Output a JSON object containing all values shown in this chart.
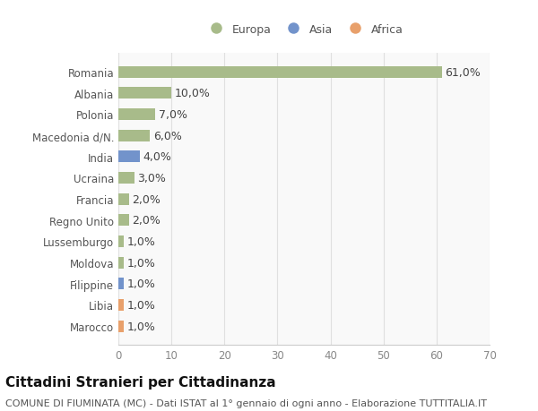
{
  "countries": [
    "Romania",
    "Albania",
    "Polonia",
    "Macedonia d/N.",
    "India",
    "Ucraina",
    "Francia",
    "Regno Unito",
    "Lussemburgo",
    "Moldova",
    "Filippine",
    "Libia",
    "Marocco"
  ],
  "values": [
    61.0,
    10.0,
    7.0,
    6.0,
    4.0,
    3.0,
    2.0,
    2.0,
    1.0,
    1.0,
    1.0,
    1.0,
    1.0
  ],
  "continents": [
    "Europa",
    "Europa",
    "Europa",
    "Europa",
    "Asia",
    "Europa",
    "Europa",
    "Europa",
    "Europa",
    "Europa",
    "Asia",
    "Africa",
    "Africa"
  ],
  "bar_colors": {
    "Europa": "#a8bb8a",
    "Asia": "#7293cb",
    "Africa": "#e8a06b"
  },
  "legend_colors": {
    "Europa": "#a8bb8a",
    "Asia": "#7293cb",
    "Africa": "#e8a06b"
  },
  "xlim": [
    0,
    70
  ],
  "xticks": [
    0,
    10,
    20,
    30,
    40,
    50,
    60,
    70
  ],
  "bg_color": "#ffffff",
  "plot_bg_color": "#f9f9f9",
  "grid_color": "#e0e0e0",
  "title": "Cittadini Stranieri per Cittadinanza",
  "subtitle": "COMUNE DI FIUMINATA (MC) - Dati ISTAT al 1° gennaio di ogni anno - Elaborazione TUTTITALIA.IT",
  "bar_height": 0.55,
  "label_fontsize": 9,
  "tick_fontsize": 8.5,
  "title_fontsize": 11,
  "subtitle_fontsize": 8,
  "text_color": "#555555",
  "label_color": "#444444"
}
